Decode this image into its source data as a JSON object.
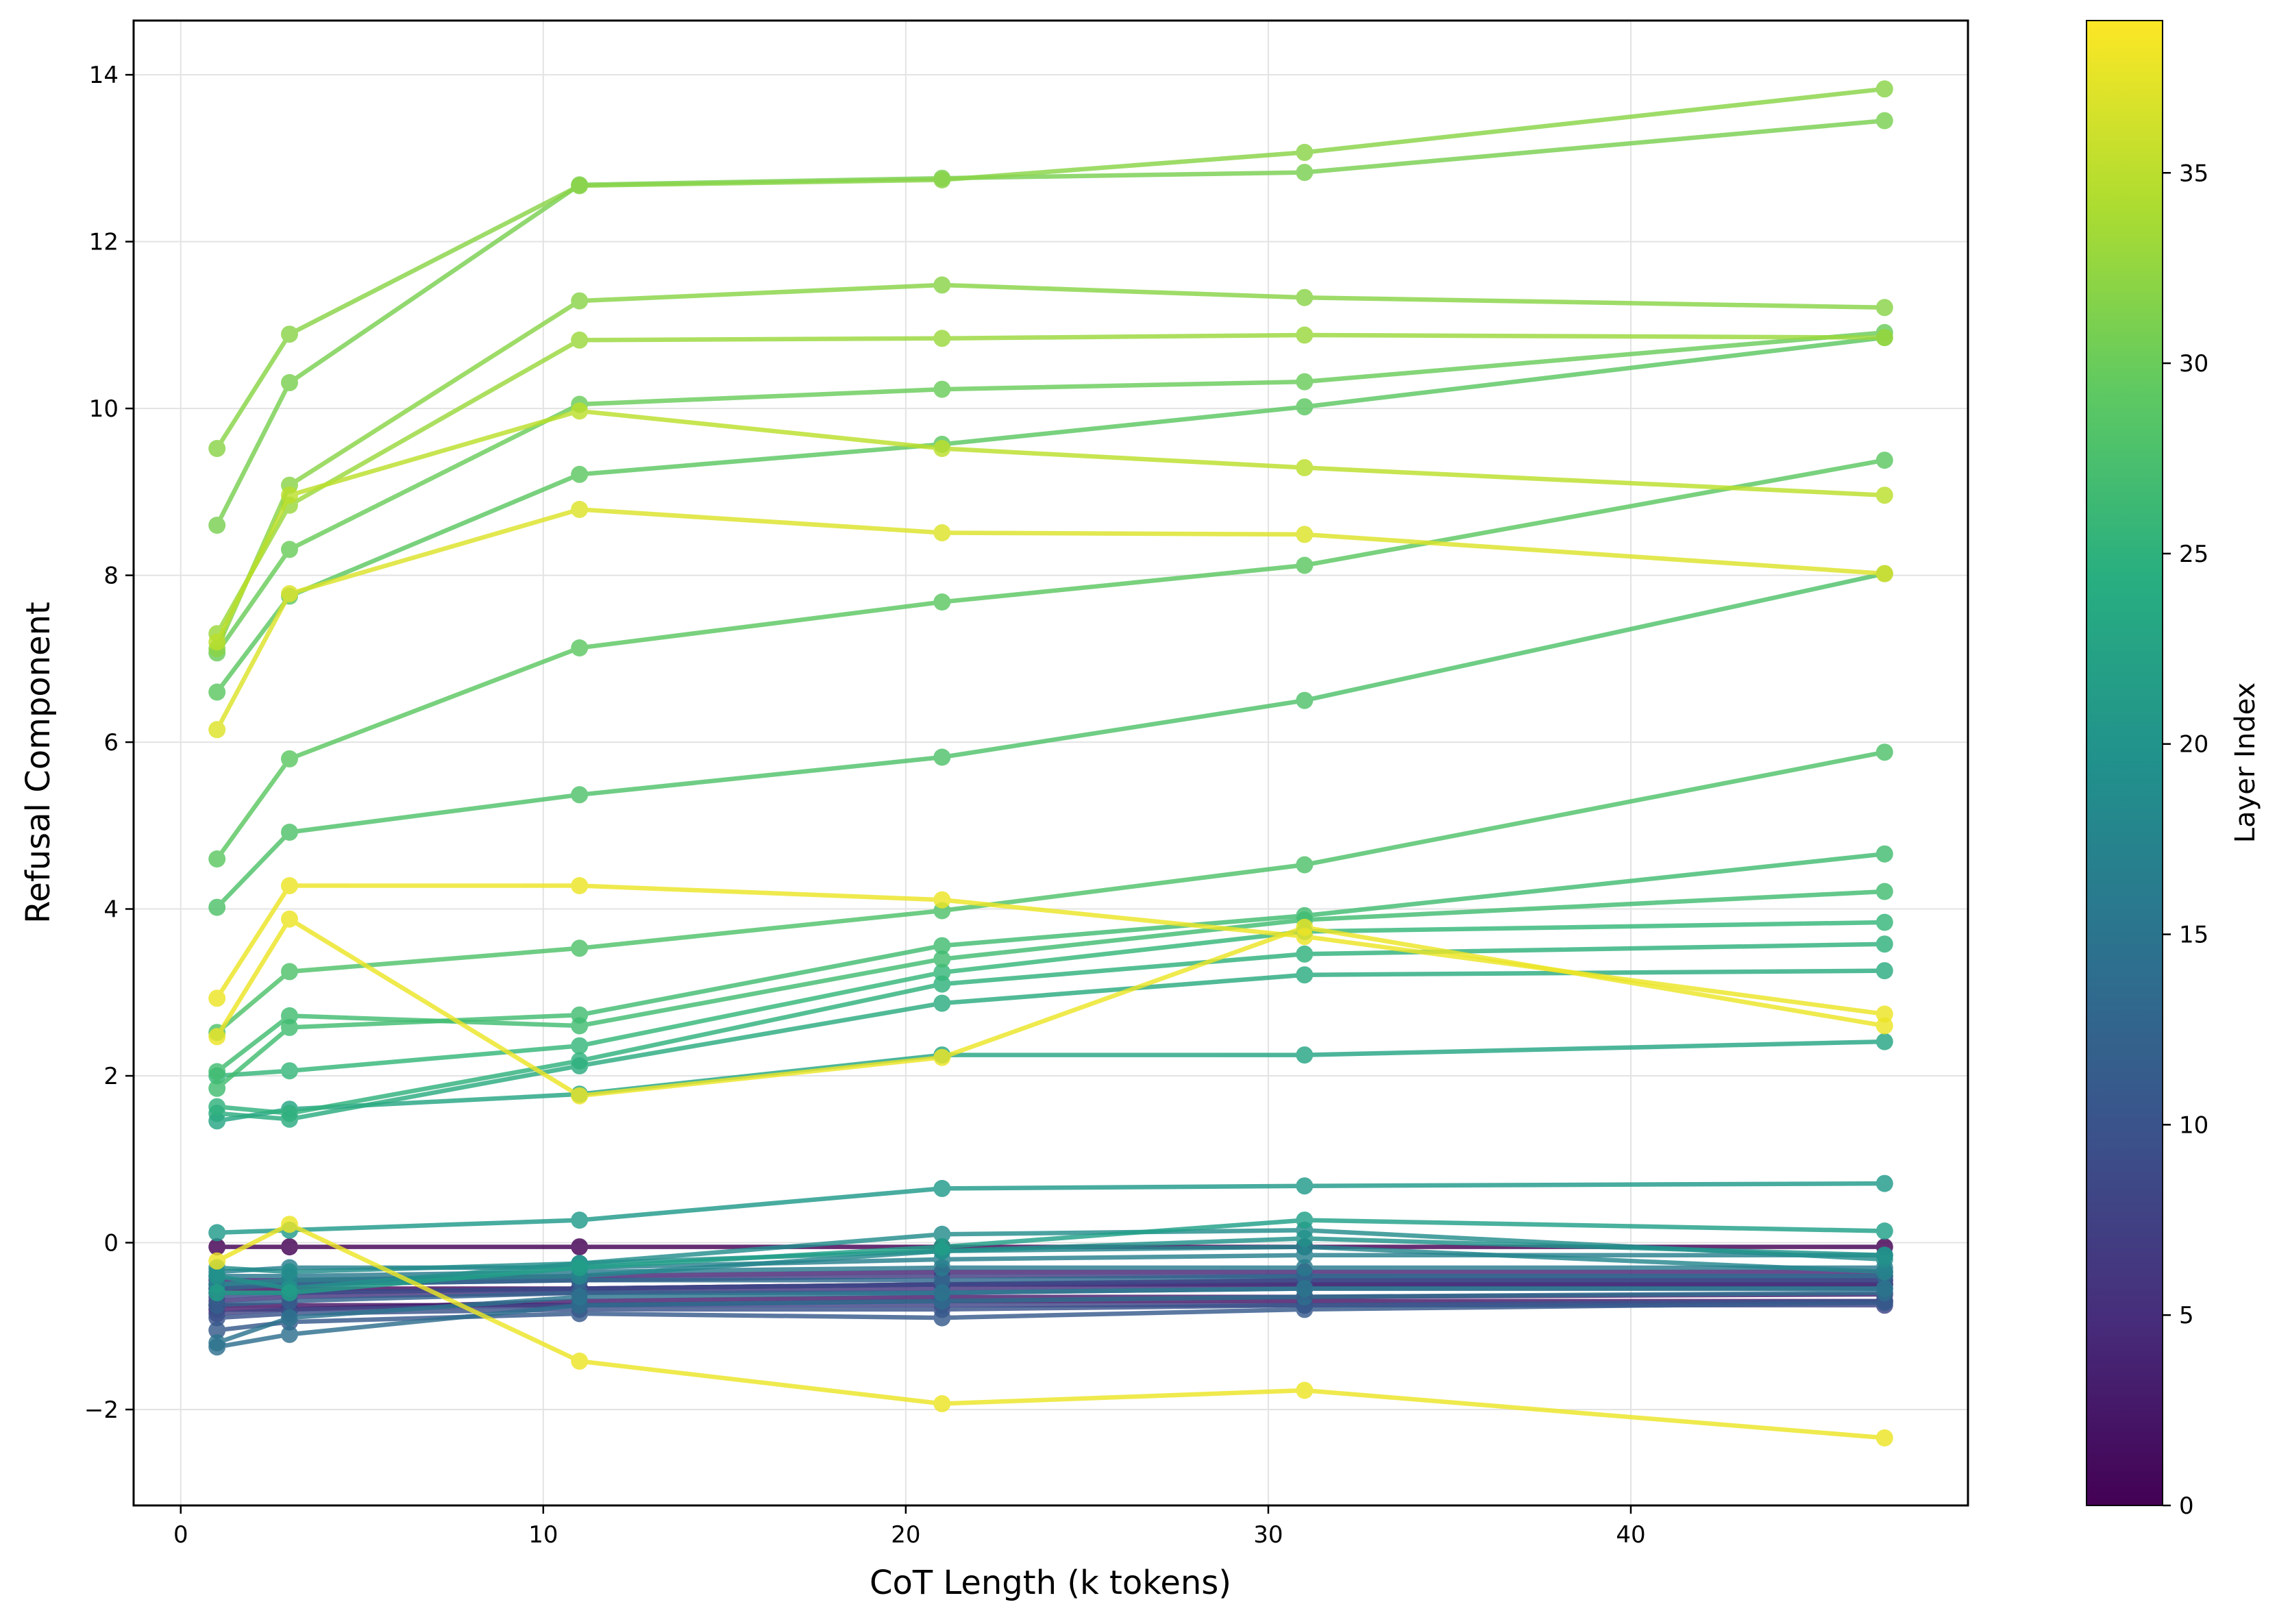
{
  "chart_data": {
    "type": "line",
    "title": "",
    "xlabel": "CoT Length (k tokens)",
    "ylabel": "Refusal Component",
    "xlim": [
      -1.3,
      49.3
    ],
    "ylim": [
      -3.15,
      14.65
    ],
    "xticks": [
      0,
      10,
      20,
      30,
      40
    ],
    "yticks": [
      -2,
      0,
      2,
      4,
      6,
      8,
      10,
      12,
      14
    ],
    "ytick_labels": [
      "−2",
      "0",
      "2",
      "4",
      "6",
      "8",
      "10",
      "12",
      "14"
    ],
    "grid": true,
    "x": [
      1,
      3,
      11,
      21,
      31,
      47
    ],
    "colorbar": {
      "label": "Layer Index",
      "colormap": "viridis",
      "range": [
        0,
        39
      ],
      "ticks": [
        0,
        5,
        10,
        15,
        20,
        25,
        30,
        35
      ]
    },
    "series": [
      {
        "name": "Layer 0",
        "layer": 0,
        "values": [
          -0.05,
          -0.05,
          -0.05,
          -0.05,
          -0.05,
          -0.05
        ]
      },
      {
        "name": "Layer 1",
        "layer": 1,
        "values": [
          -0.55,
          -0.55,
          -0.55,
          -0.5,
          -0.5,
          -0.5
        ]
      },
      {
        "name": "Layer 2",
        "layer": 2,
        "values": [
          -0.75,
          -0.75,
          -0.75,
          -0.7,
          -0.7,
          -0.7
        ]
      },
      {
        "name": "Layer 3",
        "layer": 3,
        "values": [
          -0.8,
          -0.8,
          -0.7,
          -0.65,
          -0.65,
          -0.62
        ]
      },
      {
        "name": "Layer 4",
        "layer": 4,
        "values": [
          -0.45,
          -0.45,
          -0.4,
          -0.35,
          -0.35,
          -0.35
        ]
      },
      {
        "name": "Layer 5",
        "layer": 5,
        "values": [
          -0.6,
          -0.6,
          -0.55,
          -0.5,
          -0.45,
          -0.45
        ]
      },
      {
        "name": "Layer 6",
        "layer": 6,
        "values": [
          -0.7,
          -0.65,
          -0.6,
          -0.55,
          -0.5,
          -0.5
        ]
      },
      {
        "name": "Layer 7",
        "layer": 7,
        "values": [
          -0.5,
          -0.5,
          -0.45,
          -0.4,
          -0.4,
          -0.4
        ]
      },
      {
        "name": "Layer 8",
        "layer": 8,
        "values": [
          -0.85,
          -0.8,
          -0.75,
          -0.75,
          -0.75,
          -0.75
        ]
      },
      {
        "name": "Layer 9",
        "layer": 9,
        "values": [
          -0.65,
          -0.6,
          -0.55,
          -0.5,
          -0.45,
          -0.45
        ]
      },
      {
        "name": "Layer 10",
        "layer": 10,
        "values": [
          -0.9,
          -0.85,
          -0.8,
          -0.8,
          -0.75,
          -0.7
        ]
      },
      {
        "name": "Layer 11",
        "layer": 11,
        "values": [
          -1.05,
          -0.95,
          -0.85,
          -0.9,
          -0.8,
          -0.72
        ]
      },
      {
        "name": "Layer 12",
        "layer": 12,
        "values": [
          -0.75,
          -0.7,
          -0.6,
          -0.6,
          -0.55,
          -0.55
        ]
      },
      {
        "name": "Layer 13",
        "layer": 13,
        "values": [
          -0.55,
          -0.5,
          -0.45,
          -0.45,
          -0.4,
          -0.4
        ]
      },
      {
        "name": "Layer 14",
        "layer": 14,
        "values": [
          -1.25,
          -1.1,
          -0.75,
          -0.7,
          -0.65,
          -0.6
        ]
      },
      {
        "name": "Layer 15",
        "layer": 15,
        "values": [
          -1.2,
          -0.9,
          -0.65,
          -0.6,
          -0.55,
          -0.55
        ]
      },
      {
        "name": "Layer 16",
        "layer": 16,
        "values": [
          -0.4,
          -0.4,
          -0.35,
          -0.3,
          -0.3,
          -0.3
        ]
      },
      {
        "name": "Layer 17",
        "layer": 17,
        "values": [
          -0.35,
          -0.3,
          -0.3,
          -0.2,
          -0.15,
          -0.15
        ]
      },
      {
        "name": "Layer 18",
        "layer": 18,
        "values": [
          -0.5,
          -0.45,
          -0.4,
          -0.1,
          -0.05,
          -0.35
        ]
      },
      {
        "name": "Layer 19",
        "layer": 19,
        "values": [
          -0.3,
          -0.35,
          -0.25,
          0.1,
          0.15,
          -0.2
        ]
      },
      {
        "name": "Layer 20",
        "layer": 20,
        "values": [
          -0.4,
          -0.55,
          -0.25,
          -0.1,
          0.05,
          -0.15
        ]
      },
      {
        "name": "Layer 21",
        "layer": 21,
        "values": [
          0.12,
          0.15,
          0.27,
          0.65,
          0.68,
          0.71
        ]
      },
      {
        "name": "Layer 22",
        "layer": 22,
        "values": [
          -0.6,
          -0.6,
          -0.3,
          -0.05,
          0.27,
          0.14
        ]
      },
      {
        "name": "Layer 23",
        "layer": 23,
        "values": [
          1.46,
          1.6,
          1.78,
          2.25,
          2.25,
          2.41
        ]
      },
      {
        "name": "Layer 24",
        "layer": 24,
        "values": [
          1.55,
          1.48,
          2.12,
          2.87,
          3.21,
          3.26
        ]
      },
      {
        "name": "Layer 25",
        "layer": 25,
        "values": [
          1.63,
          1.55,
          2.18,
          3.1,
          3.46,
          3.58
        ]
      },
      {
        "name": "Layer 26",
        "layer": 26,
        "values": [
          2.0,
          2.06,
          2.36,
          3.24,
          3.73,
          3.84
        ]
      },
      {
        "name": "Layer 27",
        "layer": 27,
        "values": [
          2.05,
          2.72,
          2.6,
          3.4,
          3.87,
          4.21
        ]
      },
      {
        "name": "Layer 27",
        "layer": 27,
        "values": [
          1.85,
          2.58,
          2.73,
          3.56,
          3.92,
          4.66
        ]
      },
      {
        "name": "Layer 28",
        "layer": 28,
        "values": [
          2.52,
          3.25,
          3.53,
          3.98,
          4.53,
          5.88
        ]
      },
      {
        "name": "Layer 28",
        "layer": 28,
        "values": [
          4.02,
          4.92,
          5.37,
          5.82,
          6.5,
          8.02
        ]
      },
      {
        "name": "Layer 29",
        "layer": 29,
        "values": [
          4.6,
          5.8,
          7.13,
          7.68,
          8.12,
          9.38
        ]
      },
      {
        "name": "Layer 29",
        "layer": 29,
        "values": [
          6.6,
          7.75,
          9.21,
          9.57,
          10.02,
          10.85
        ]
      },
      {
        "name": "Layer 30",
        "layer": 30,
        "values": [
          7.07,
          8.31,
          10.05,
          10.23,
          10.32,
          10.91
        ]
      },
      {
        "name": "Layer 31",
        "layer": 31,
        "values": [
          8.6,
          10.31,
          12.68,
          12.76,
          12.83,
          13.45
        ]
      },
      {
        "name": "Layer 32",
        "layer": 32,
        "values": [
          9.52,
          10.89,
          12.67,
          12.74,
          13.07,
          13.83
        ]
      },
      {
        "name": "Layer 32",
        "layer": 32,
        "values": [
          7.12,
          9.08,
          11.29,
          11.48,
          11.33,
          11.21
        ]
      },
      {
        "name": "Layer 33",
        "layer": 33,
        "values": [
          7.3,
          8.84,
          10.82,
          10.84,
          10.88,
          10.85
        ]
      },
      {
        "name": "Layer 35",
        "layer": 35,
        "values": [
          7.2,
          8.96,
          9.97,
          9.52,
          9.29,
          8.96
        ]
      },
      {
        "name": "Layer 37",
        "layer": 37,
        "values": [
          6.15,
          7.78,
          8.79,
          8.51,
          8.49,
          8.02
        ]
      },
      {
        "name": "Layer 38",
        "layer": 38,
        "values": [
          2.93,
          4.28,
          4.28,
          4.11,
          3.67,
          2.74
        ]
      },
      {
        "name": "Layer 38",
        "layer": 38,
        "values": [
          2.47,
          3.88,
          1.76,
          2.22,
          3.78,
          2.6
        ]
      },
      {
        "name": "Layer 38",
        "layer": 38,
        "values": [
          -0.22,
          0.22,
          -1.42,
          -1.93,
          -1.77,
          -2.34
        ]
      }
    ]
  }
}
